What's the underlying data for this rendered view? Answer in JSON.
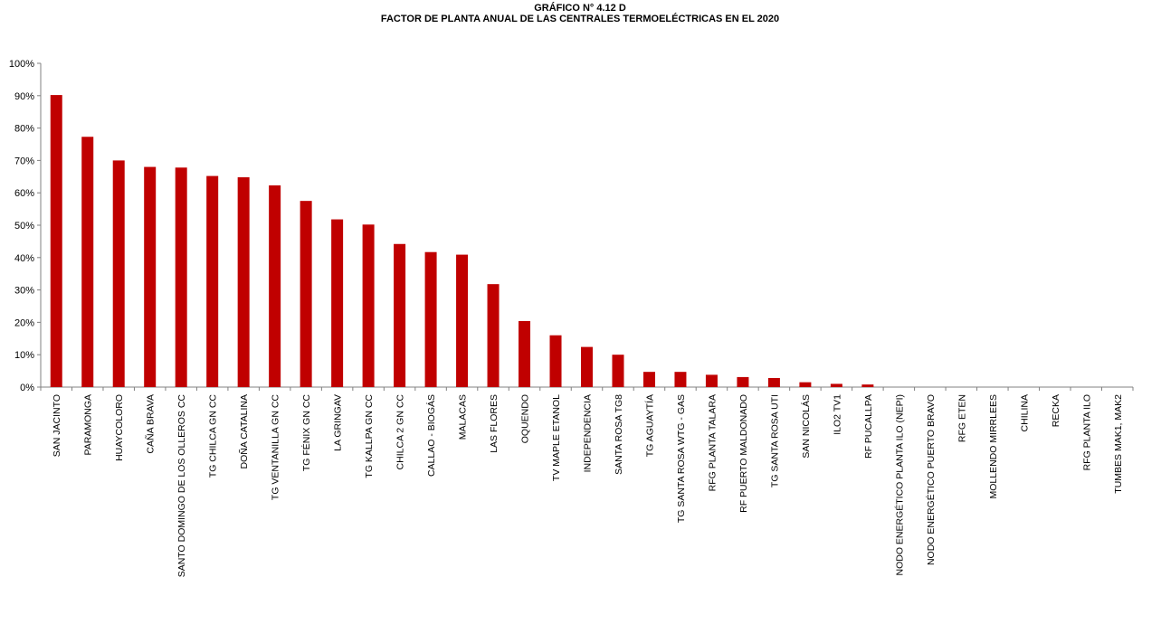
{
  "chart_data": {
    "type": "bar",
    "title": "GRÁFICO N° 4.12 D",
    "subtitle": "FACTOR DE PLANTA ANUAL DE LAS CENTRALES TERMOELÉCTRICAS  EN EL 2020",
    "xlabel": "",
    "ylabel": "",
    "ylim": [
      0,
      100
    ],
    "yticks": [
      "0%",
      "10%",
      "20%",
      "30%",
      "40%",
      "50%",
      "60%",
      "70%",
      "80%",
      "90%",
      "100%"
    ],
    "grid": false,
    "bar_color": "#c00000",
    "categories": [
      "SAN JACINTO",
      "PARAMONGA",
      "HUAYCOLORO",
      "CAÑA BRAVA",
      "SANTO DOMINGO DE LOS OLLEROS   CC",
      "TG CHILCA GN CC",
      "DOÑA CATALINA",
      "TG VENTANILLA GN CC",
      "TG FÉNIX GN CC",
      "LA GRINGAV",
      "TG KALLPA GN CC",
      "CHILCA 2 GN CC",
      "CALLAO - BIOGÁS",
      "MALACAS",
      "LAS FLORES",
      "OQUENDO",
      "TV MAPLE ETANOL",
      "INDEPENDENCIA",
      "SANTA ROSA TG8",
      "TG AGUAYTÍA",
      "TG SANTA ROSA WTG - GAS",
      "RFG PLANTA TALARA",
      "RF PUERTO MALDONADO",
      "TG SANTA ROSA UTI",
      "SAN NICOLÁS",
      "ILO2 TV1",
      "RF PUCALLPA",
      "NODO ENERGÉTICO PLANTA ILO (NEPI)",
      "NODO ENERGÉTICO PUERTO BRAVO",
      "RFG ETEN",
      "MOLLENDO MIRRLEES",
      "CHILINA",
      "RECKA",
      "RFG PLANTA ILO",
      "TUMBES MAK1, MAK2"
    ],
    "values": [
      90.2,
      77.3,
      70.0,
      68.0,
      67.8,
      65.2,
      64.8,
      62.3,
      57.5,
      51.8,
      50.2,
      44.2,
      41.7,
      40.9,
      31.8,
      20.4,
      16.0,
      12.4,
      10.0,
      4.7,
      4.7,
      3.8,
      3.1,
      2.8,
      1.5,
      1.0,
      0.8,
      0,
      0,
      0,
      0,
      0,
      0,
      0,
      0
    ]
  }
}
